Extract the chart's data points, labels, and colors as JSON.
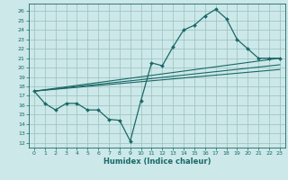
{
  "title": "",
  "xlabel": "Humidex (Indice chaleur)",
  "bg_color": "#cce8e8",
  "line_color": "#1a6868",
  "grid_color": "#9bbfbf",
  "xlim": [
    -0.5,
    23.5
  ],
  "ylim": [
    11.5,
    26.8
  ],
  "yticks": [
    12,
    13,
    14,
    15,
    16,
    17,
    18,
    19,
    20,
    21,
    22,
    23,
    24,
    25,
    26
  ],
  "xticks": [
    0,
    1,
    2,
    3,
    4,
    5,
    6,
    7,
    8,
    9,
    10,
    11,
    12,
    13,
    14,
    15,
    16,
    17,
    18,
    19,
    20,
    21,
    22,
    23
  ],
  "line1_x": [
    0,
    1,
    2,
    3,
    4,
    5,
    6,
    7,
    8,
    9,
    10,
    11,
    12,
    13,
    14,
    15,
    16,
    17,
    18,
    19,
    20,
    21,
    22,
    23
  ],
  "line1_y": [
    17.5,
    16.2,
    15.5,
    16.2,
    16.2,
    15.5,
    15.5,
    14.5,
    14.4,
    12.2,
    16.5,
    20.5,
    20.2,
    22.2,
    24.0,
    24.5,
    25.5,
    26.2,
    25.2,
    23.0,
    22.0,
    21.0,
    21.0,
    21.0
  ],
  "line2_x": [
    0,
    23
  ],
  "line2_y": [
    17.5,
    21.0
  ],
  "line3_x": [
    0,
    23
  ],
  "line3_y": [
    17.5,
    20.3
  ],
  "line4_x": [
    0,
    23
  ],
  "line4_y": [
    17.5,
    19.8
  ]
}
